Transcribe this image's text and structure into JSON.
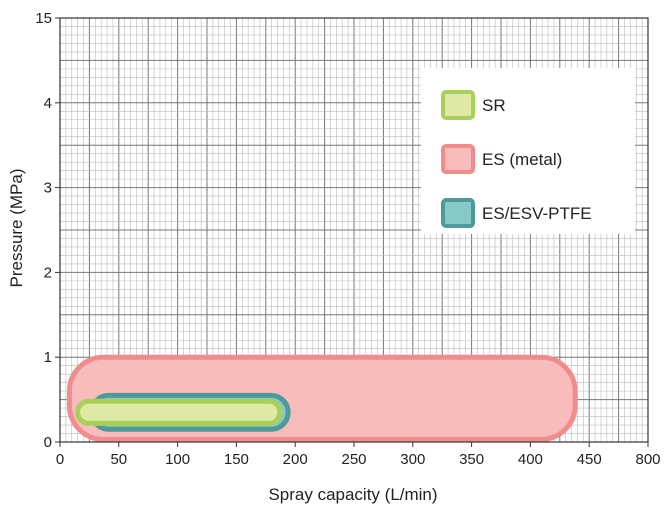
{
  "chart_data": {
    "type": "area",
    "title": "",
    "xlabel": "Spray capacity (L/min)",
    "ylabel": "Pressure (MPa)",
    "xlim": [
      0,
      800
    ],
    "x_ticks": [
      0,
      50,
      100,
      150,
      200,
      250,
      300,
      350,
      400,
      450,
      800
    ],
    "x_tick_labels": [
      "0",
      "50",
      "100",
      "150",
      "200",
      "250",
      "300",
      "350",
      "400",
      "450",
      "800"
    ],
    "y_ticks": [
      0,
      1,
      2,
      3,
      4,
      15
    ],
    "y_tick_labels": [
      "0",
      "1",
      "2",
      "3",
      "4",
      "15"
    ],
    "grid": true,
    "legend_position": "top-right",
    "series": [
      {
        "name": "ES (metal)",
        "color": "#f08c8c",
        "fill": "#f8bcbc",
        "x_range": [
          8,
          438
        ],
        "y_range": [
          0.03,
          1.0
        ]
      },
      {
        "name": "ES/ESV-PTFE",
        "color": "#4e9a9b",
        "fill": "#87c9c4",
        "x_range": [
          27,
          194
        ],
        "y_range": [
          0.15,
          0.55
        ]
      },
      {
        "name": "SR",
        "color": "#a9d05a",
        "fill": "#dfe9a5",
        "x_range": [
          15,
          187
        ],
        "y_range": [
          0.22,
          0.48
        ]
      }
    ],
    "legend_order": [
      "SR",
      "ES (metal)",
      "ES/ESV-PTFE"
    ]
  }
}
